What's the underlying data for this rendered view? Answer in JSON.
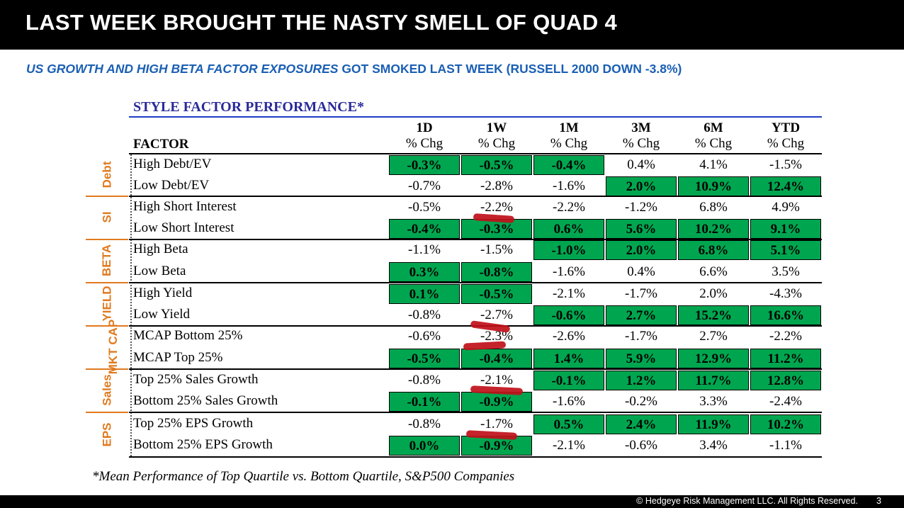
{
  "title": "LAST WEEK BROUGHT THE NASTY SMELL OF QUAD 4",
  "subtitle": {
    "italic_part": "US GROWTH AND HIGH BETA FACTOR EXPOSURES",
    "rest": " GOT SMOKED LAST WEEK (RUSSELL 2000 DOWN -3.8%)"
  },
  "table": {
    "title": "STYLE FACTOR PERFORMANCE*",
    "factor_header": "FACTOR",
    "columns": [
      {
        "top": "1D",
        "sub": "% Chg"
      },
      {
        "top": "1W",
        "sub": "% Chg"
      },
      {
        "top": "1M",
        "sub": "% Chg"
      },
      {
        "top": "3M",
        "sub": "% Chg"
      },
      {
        "top": "6M",
        "sub": "% Chg"
      },
      {
        "top": "YTD",
        "sub": "% Chg"
      }
    ],
    "groups": [
      "Debt",
      "SI",
      "BETA",
      "YIELD",
      "MKT CAP",
      "Sales",
      "EPS"
    ],
    "rows": [
      {
        "factor": "High Debt/EV",
        "values": [
          "-0.3%",
          "-0.5%",
          "-0.4%",
          "0.4%",
          "4.1%",
          "-1.5%"
        ],
        "green": [
          true,
          true,
          true,
          false,
          false,
          false
        ]
      },
      {
        "factor": "Low Debt/EV",
        "values": [
          "-0.7%",
          "-2.8%",
          "-1.6%",
          "2.0%",
          "10.9%",
          "12.4%"
        ],
        "green": [
          false,
          false,
          false,
          true,
          true,
          true
        ]
      },
      {
        "factor": "High Short Interest",
        "values": [
          "-0.5%",
          "-2.2%",
          "-2.2%",
          "-1.2%",
          "6.8%",
          "4.9%"
        ],
        "green": [
          false,
          false,
          false,
          false,
          false,
          false
        ]
      },
      {
        "factor": "Low Short Interest",
        "values": [
          "-0.4%",
          "-0.3%",
          "0.6%",
          "5.6%",
          "10.2%",
          "9.1%"
        ],
        "green": [
          true,
          true,
          true,
          true,
          true,
          true
        ]
      },
      {
        "factor": "High Beta",
        "values": [
          "-1.1%",
          "-1.5%",
          "-1.0%",
          "2.0%",
          "6.8%",
          "5.1%"
        ],
        "green": [
          false,
          false,
          true,
          true,
          true,
          true
        ]
      },
      {
        "factor": "Low Beta",
        "values": [
          "0.3%",
          "-0.8%",
          "-1.6%",
          "0.4%",
          "6.6%",
          "3.5%"
        ],
        "green": [
          true,
          true,
          false,
          false,
          false,
          false
        ]
      },
      {
        "factor": "High Yield",
        "values": [
          "0.1%",
          "-0.5%",
          "-2.1%",
          "-1.7%",
          "2.0%",
          "-4.3%"
        ],
        "green": [
          true,
          true,
          false,
          false,
          false,
          false
        ]
      },
      {
        "factor": "Low Yield",
        "values": [
          "-0.8%",
          "-2.7%",
          "-0.6%",
          "2.7%",
          "15.2%",
          "16.6%"
        ],
        "green": [
          false,
          false,
          true,
          true,
          true,
          true
        ]
      },
      {
        "factor": "MCAP Bottom 25%",
        "values": [
          "-0.6%",
          "-2.3%",
          "-2.6%",
          "-1.7%",
          "2.7%",
          "-2.2%"
        ],
        "green": [
          false,
          false,
          false,
          false,
          false,
          false
        ]
      },
      {
        "factor": "MCAP Top 25%",
        "values": [
          "-0.5%",
          "-0.4%",
          "1.4%",
          "5.9%",
          "12.9%",
          "11.2%"
        ],
        "green": [
          true,
          true,
          true,
          true,
          true,
          true
        ]
      },
      {
        "factor": "Top 25% Sales Growth",
        "values": [
          "-0.8%",
          "-2.1%",
          "-0.1%",
          "1.2%",
          "11.7%",
          "12.8%"
        ],
        "green": [
          false,
          false,
          true,
          true,
          true,
          true
        ]
      },
      {
        "factor": "Bottom 25% Sales Growth",
        "values": [
          "-0.1%",
          "-0.9%",
          "-1.6%",
          "-0.2%",
          "3.3%",
          "-2.4%"
        ],
        "green": [
          true,
          true,
          false,
          false,
          false,
          false
        ]
      },
      {
        "factor": "Top 25% EPS Growth",
        "values": [
          "-0.8%",
          "-1.7%",
          "0.5%",
          "2.4%",
          "11.9%",
          "10.2%"
        ],
        "green": [
          false,
          false,
          true,
          true,
          true,
          true
        ]
      },
      {
        "factor": "Bottom 25% EPS Growth",
        "values": [
          "0.0%",
          "-0.9%",
          "-2.1%",
          "-0.6%",
          "3.4%",
          "-1.1%"
        ],
        "green": [
          true,
          true,
          false,
          false,
          false,
          false
        ]
      }
    ],
    "footnote": "*Mean Performance of Top Quartile vs. Bottom Quartile, S&P500 Companies"
  },
  "footer": {
    "copyright": "© Hedgeye Risk Management LLC. All Rights Reserved.",
    "page_number": "3"
  },
  "colors": {
    "green": "#00a64f",
    "accent_orange": "#e07a1f",
    "title_blue": "#1a5fb4",
    "annotation_red": "#c0101a"
  }
}
